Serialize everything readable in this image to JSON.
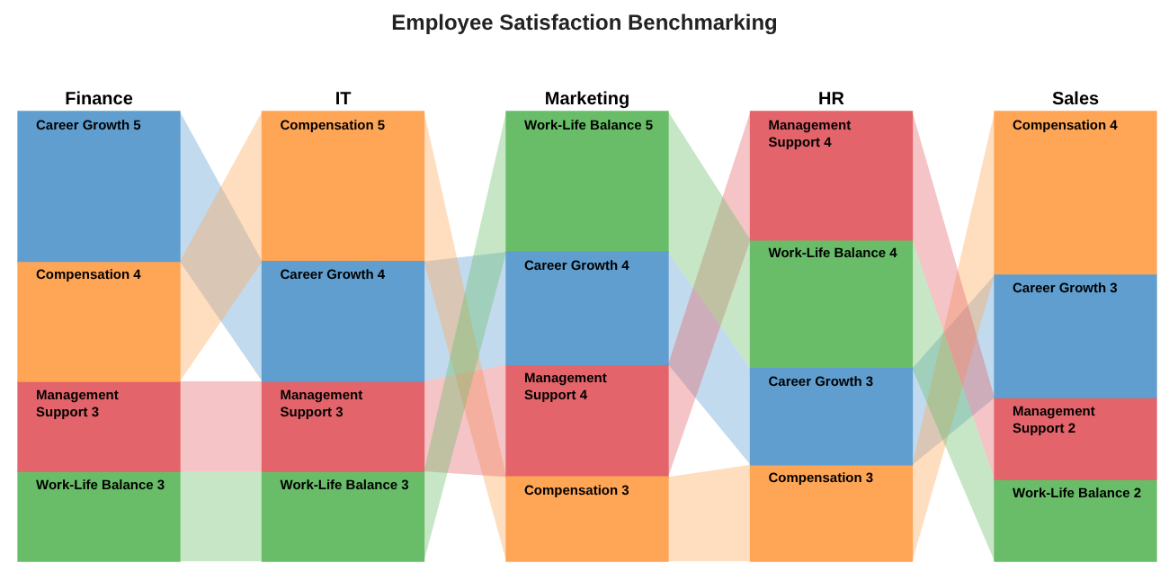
{
  "chart_data": {
    "type": "other",
    "title": "Employee Satisfaction Benchmarking",
    "categories": [
      "Finance",
      "IT",
      "Marketing",
      "HR",
      "Sales"
    ],
    "series": [
      {
        "name": "Career Growth",
        "color": "#5f9ecf",
        "values": [
          5,
          4,
          4,
          3,
          3
        ],
        "value_labels": [
          "5",
          "4",
          "4",
          "3",
          "3"
        ]
      },
      {
        "name": "Compensation",
        "color": "#ffa556",
        "values": [
          4,
          5,
          3,
          3,
          4
        ],
        "value_labels": [
          "4",
          "5",
          "3",
          "3",
          "4"
        ]
      },
      {
        "name": "Management Support",
        "color": "#e3646a",
        "values": [
          3,
          3,
          4,
          4,
          2
        ],
        "value_labels": [
          "3",
          "3",
          "4",
          "4",
          "2"
        ]
      },
      {
        "name": "Work-Life Balance",
        "color": "#69bd68",
        "values": [
          3,
          3,
          5,
          4,
          2
        ],
        "value_labels": [
          "3",
          "3",
          "5",
          "4",
          "2"
        ]
      }
    ]
  }
}
